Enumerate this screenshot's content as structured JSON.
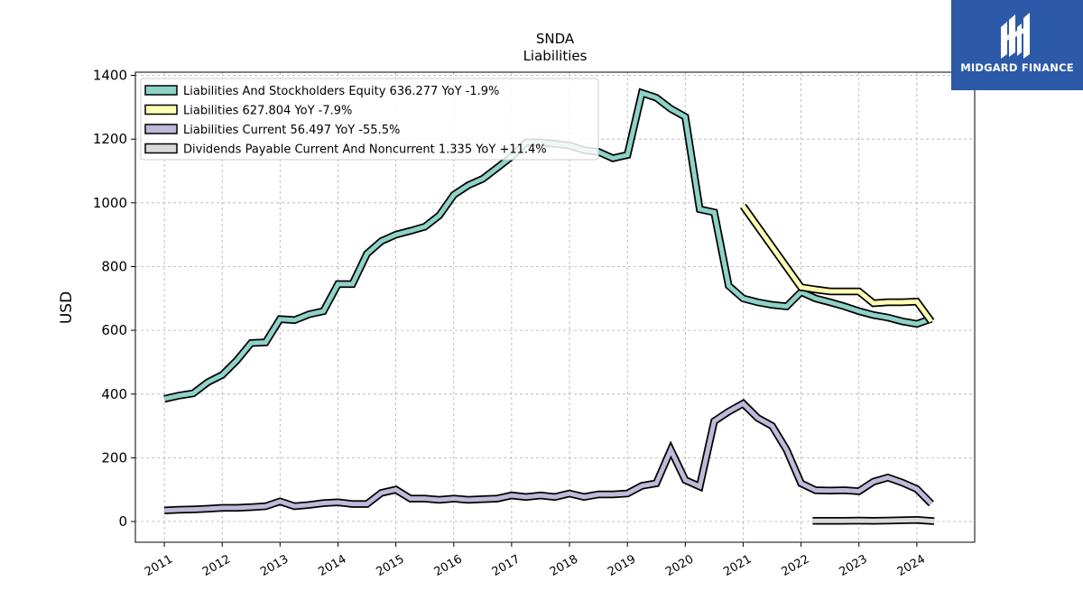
{
  "brand": {
    "name": "MIDGARD FINANCE"
  },
  "chart_data": {
    "type": "line",
    "title": "SNDA",
    "subtitle": "Liabilities",
    "ylabel": "USD",
    "xlabel": "",
    "xlim": [
      2010.5,
      2025.0
    ],
    "ylim": [
      -65,
      1410
    ],
    "yticks": [
      0,
      200,
      400,
      600,
      800,
      1000,
      1200,
      1400
    ],
    "xticks": [
      2011,
      2012,
      2013,
      2014,
      2015,
      2016,
      2017,
      2018,
      2019,
      2020,
      2021,
      2022,
      2023,
      2024
    ],
    "grid": true,
    "legend_position": "top-left",
    "series": [
      {
        "name": "Liabilities And Stockholders Equity",
        "legend": "Liabilities And Stockholders Equity  636.277 YoY -1.9%",
        "color": "#8dd3c7",
        "points": [
          [
            2011.0,
            385
          ],
          [
            2011.25,
            395
          ],
          [
            2011.5,
            402
          ],
          [
            2011.75,
            437
          ],
          [
            2012.0,
            460
          ],
          [
            2012.25,
            505
          ],
          [
            2012.5,
            560
          ],
          [
            2012.75,
            562
          ],
          [
            2013.0,
            635
          ],
          [
            2013.25,
            632
          ],
          [
            2013.5,
            650
          ],
          [
            2013.75,
            660
          ],
          [
            2014.0,
            745
          ],
          [
            2014.25,
            745
          ],
          [
            2014.5,
            840
          ],
          [
            2014.75,
            880
          ],
          [
            2015.0,
            900
          ],
          [
            2015.25,
            912
          ],
          [
            2015.5,
            925
          ],
          [
            2015.75,
            960
          ],
          [
            2016.0,
            1025
          ],
          [
            2016.25,
            1055
          ],
          [
            2016.5,
            1075
          ],
          [
            2016.75,
            1110
          ],
          [
            2017.0,
            1145
          ],
          [
            2017.25,
            1190
          ],
          [
            2017.5,
            1190
          ],
          [
            2017.75,
            1185
          ],
          [
            2018.0,
            1180
          ],
          [
            2018.25,
            1165
          ],
          [
            2018.5,
            1160
          ],
          [
            2018.75,
            1140
          ],
          [
            2019.0,
            1150
          ],
          [
            2019.25,
            1345
          ],
          [
            2019.5,
            1330
          ],
          [
            2019.75,
            1295
          ],
          [
            2020.0,
            1270
          ],
          [
            2020.25,
            980
          ],
          [
            2020.5,
            970
          ],
          [
            2020.75,
            740
          ],
          [
            2021.0,
            700
          ],
          [
            2021.25,
            688
          ],
          [
            2021.5,
            680
          ],
          [
            2021.75,
            675
          ],
          [
            2022.0,
            720
          ],
          [
            2022.25,
            700
          ],
          [
            2022.5,
            688
          ],
          [
            2022.75,
            675
          ],
          [
            2023.0,
            660
          ],
          [
            2023.25,
            648
          ],
          [
            2023.5,
            640
          ],
          [
            2023.75,
            628
          ],
          [
            2024.0,
            620
          ],
          [
            2024.25,
            636
          ]
        ]
      },
      {
        "name": "Liabilities",
        "legend": "Liabilities  627.804 YoY -7.9%",
        "color": "#ffffb3",
        "points": [
          [
            2021.0,
            990
          ],
          [
            2022.0,
            735
          ],
          [
            2022.25,
            728
          ],
          [
            2022.5,
            722
          ],
          [
            2022.75,
            722
          ],
          [
            2023.0,
            722
          ],
          [
            2023.25,
            685
          ],
          [
            2023.5,
            688
          ],
          [
            2023.75,
            688
          ],
          [
            2024.0,
            690
          ],
          [
            2024.25,
            628
          ]
        ]
      },
      {
        "name": "Liabilities Current",
        "legend": "Liabilities Current  56.497 YoY -55.5%",
        "color": "#bebada",
        "points": [
          [
            2011.0,
            35
          ],
          [
            2011.25,
            37
          ],
          [
            2011.5,
            38
          ],
          [
            2011.75,
            40
          ],
          [
            2012.0,
            43
          ],
          [
            2012.25,
            43
          ],
          [
            2012.5,
            45
          ],
          [
            2012.75,
            48
          ],
          [
            2013.0,
            63
          ],
          [
            2013.25,
            48
          ],
          [
            2013.5,
            52
          ],
          [
            2013.75,
            58
          ],
          [
            2014.0,
            60
          ],
          [
            2014.25,
            55
          ],
          [
            2014.5,
            55
          ],
          [
            2014.75,
            90
          ],
          [
            2015.0,
            100
          ],
          [
            2015.25,
            72
          ],
          [
            2015.5,
            72
          ],
          [
            2015.75,
            68
          ],
          [
            2016.0,
            72
          ],
          [
            2016.25,
            68
          ],
          [
            2016.5,
            70
          ],
          [
            2016.75,
            72
          ],
          [
            2017.0,
            82
          ],
          [
            2017.25,
            77
          ],
          [
            2017.5,
            82
          ],
          [
            2017.75,
            77
          ],
          [
            2018.0,
            88
          ],
          [
            2018.25,
            77
          ],
          [
            2018.5,
            85
          ],
          [
            2018.75,
            85
          ],
          [
            2019.0,
            88
          ],
          [
            2019.25,
            112
          ],
          [
            2019.5,
            120
          ],
          [
            2019.75,
            225
          ],
          [
            2020.0,
            130
          ],
          [
            2020.25,
            110
          ],
          [
            2020.5,
            315
          ],
          [
            2020.75,
            345
          ],
          [
            2021.0,
            370
          ],
          [
            2021.25,
            325
          ],
          [
            2021.5,
            300
          ],
          [
            2021.75,
            225
          ],
          [
            2022.0,
            120
          ],
          [
            2022.25,
            98
          ],
          [
            2022.5,
            97
          ],
          [
            2022.75,
            98
          ],
          [
            2023.0,
            95
          ],
          [
            2023.25,
            125
          ],
          [
            2023.5,
            138
          ],
          [
            2023.75,
            122
          ],
          [
            2024.0,
            102
          ],
          [
            2024.25,
            56
          ]
        ]
      },
      {
        "name": "Dividends Payable Current And Noncurrent",
        "legend": "Dividends Payable Current And Noncurrent  1.335 YoY +11.4%",
        "color": "#d9d9d9",
        "points": [
          [
            2022.2,
            2
          ],
          [
            2022.5,
            2
          ],
          [
            2022.75,
            2
          ],
          [
            2023.0,
            3
          ],
          [
            2023.25,
            2
          ],
          [
            2023.5,
            3
          ],
          [
            2023.75,
            4
          ],
          [
            2024.0,
            5
          ],
          [
            2024.3,
            1.3
          ]
        ]
      }
    ]
  }
}
